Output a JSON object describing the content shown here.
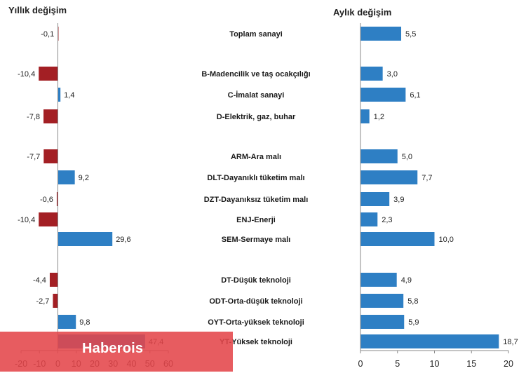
{
  "chart_data": [
    {
      "type": "bar",
      "orientation": "horizontal",
      "title": "Yıllık değişim",
      "categories": [
        "Toplam sanayi",
        "B-Madencilik ve taş ocakçılığı",
        "C-İmalat sanayi",
        "D-Elektrik, gaz, buhar",
        "ARM-Ara malı",
        "DLT-Dayanıklı tüketim malı",
        "DZT-Dayanıksız tüketim malı",
        "ENJ-Enerji",
        "SEM-Sermaye malı",
        "DT-Düşük teknoloji",
        "ODT-Orta-düşük teknoloji",
        "OYT-Orta-yüksek teknoloji",
        "YT-Yüksek teknoloji"
      ],
      "values": [
        -0.1,
        -10.4,
        1.4,
        -7.8,
        -7.7,
        9.2,
        -0.6,
        -10.4,
        29.6,
        -4.4,
        -2.7,
        9.8,
        47.4
      ],
      "value_labels": [
        "-0,1",
        "-10,4",
        "1,4",
        "-7,8",
        "-7,7",
        "9,2",
        "-0,6",
        "-10,4",
        "29,6",
        "-4,4",
        "-2,7",
        "9,8",
        "47,4"
      ],
      "xlim": [
        -20,
        60
      ],
      "x_ticks": [
        -20,
        -10,
        0,
        10,
        20,
        30,
        40,
        50,
        60
      ],
      "x_tick_labels": [
        "-20",
        "-10",
        "0",
        "10",
        "20",
        "30",
        "40",
        "50",
        "60"
      ],
      "colors": {
        "positive": "#2e7fc4",
        "negative": "#a31f24"
      },
      "grid": false
    },
    {
      "type": "bar",
      "orientation": "horizontal",
      "title": "Aylık değişim",
      "categories": [
        "Toplam sanayi",
        "B-Madencilik ve taş ocakçılığı",
        "C-İmalat sanayi",
        "D-Elektrik, gaz, buhar",
        "ARM-Ara malı",
        "DLT-Dayanıklı tüketim malı",
        "DZT-Dayanıksız tüketim malı",
        "ENJ-Enerji",
        "SEM-Sermaye malı",
        "DT-Düşük teknoloji",
        "ODT-Orta-düşük teknoloji",
        "OYT-Orta-yüksek teknoloji",
        "YT-Yüksek teknoloji"
      ],
      "values": [
        5.5,
        3.0,
        6.1,
        1.2,
        5.0,
        7.7,
        3.9,
        2.3,
        10.0,
        4.9,
        5.8,
        5.9,
        18.7
      ],
      "value_labels": [
        "5,5",
        "3,0",
        "6,1",
        "1,2",
        "5,0",
        "7,7",
        "3,9",
        "2,3",
        "10,0",
        "4,9",
        "5,8",
        "5,9",
        "18,7"
      ],
      "xlim": [
        0,
        20
      ],
      "x_ticks": [
        0,
        5,
        10,
        15,
        20
      ],
      "x_tick_labels": [
        "0",
        "5",
        "10",
        "15",
        "20"
      ],
      "colors": {
        "positive": "#2e7fc4"
      },
      "grid": false
    }
  ],
  "watermark": {
    "text": "Haberois",
    "color": "#e4464a"
  }
}
